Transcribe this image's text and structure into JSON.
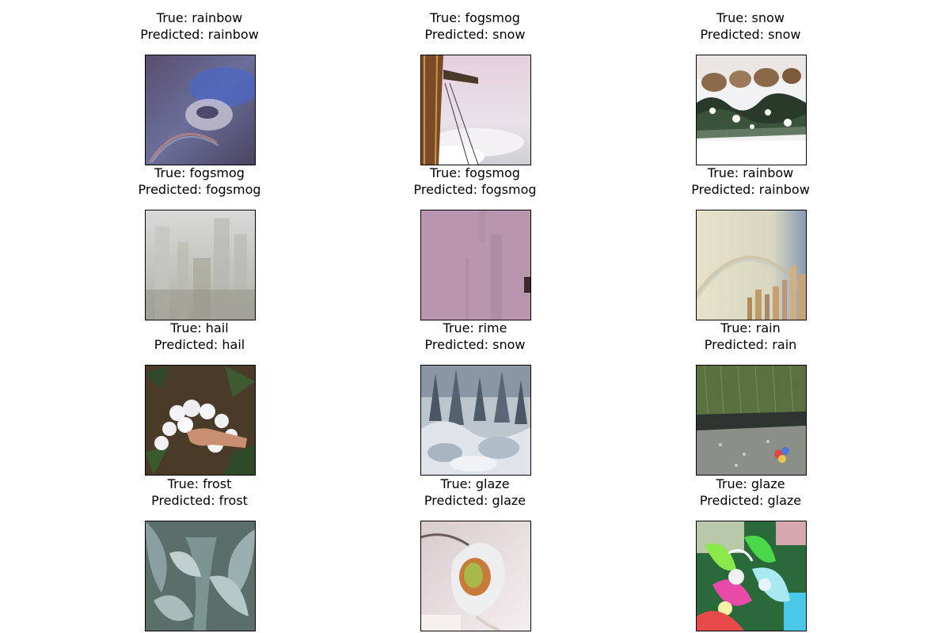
{
  "panels": [
    {
      "true_label": "True: rainbow",
      "predicted_label": "Predicted: rainbow",
      "scene": "rainbow-storm-clouds"
    },
    {
      "true_label": "True: fogsmog",
      "predicted_label": "Predicted: snow",
      "scene": "crane-tower-above-fog"
    },
    {
      "true_label": "True: snow",
      "predicted_label": "Predicted: snow",
      "scene": "sheep-on-snowy-field"
    },
    {
      "true_label": "True: fogsmog",
      "predicted_label": "Predicted: fogsmog",
      "scene": "smoggy-city-skyline"
    },
    {
      "true_label": "True: fogsmog",
      "predicted_label": "Predicted: fogsmog",
      "scene": "purple-haze-tower-silhouette"
    },
    {
      "true_label": "True: rainbow",
      "predicted_label": "Predicted: rainbow",
      "scene": "rainbow-over-skyscrapers"
    },
    {
      "true_label": "True: hail",
      "predicted_label": "Predicted: hail",
      "scene": "hailstones-in-hand"
    },
    {
      "true_label": "True: rime",
      "predicted_label": "Predicted: snow",
      "scene": "rime-covered-forest"
    },
    {
      "true_label": "True: rain",
      "predicted_label": "Predicted: rain",
      "scene": "rain-on-grass-and-pavement"
    },
    {
      "true_label": "True: frost",
      "predicted_label": "Predicted: frost",
      "scene": "frosted-leafy-plant"
    },
    {
      "true_label": "True: glaze",
      "predicted_label": "Predicted: glaze",
      "scene": "ice-glazed-leaf"
    },
    {
      "true_label": "True: glaze",
      "predicted_label": "Predicted: glaze",
      "scene": "ice-glazed-colorful-plant"
    }
  ]
}
